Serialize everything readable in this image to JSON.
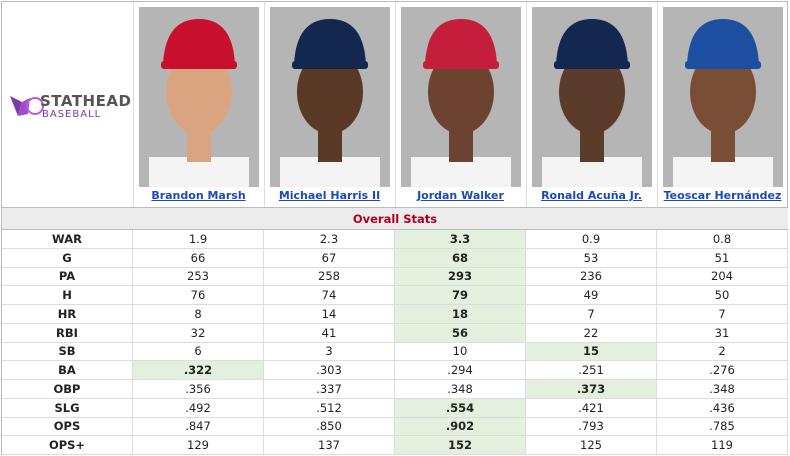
{
  "logo": {
    "brand": "STATHEAD",
    "sub": "BASEBALL"
  },
  "players": [
    "Brandon Marsh",
    "Michael Harris II",
    "Jordan Walker",
    "Ronald Acuña Jr.",
    "Teoscar Hernández"
  ],
  "section_title": "Overall Stats",
  "rows": [
    {
      "label": "WAR",
      "values": [
        "1.9",
        "2.3",
        "3.3",
        "0.9",
        "0.8"
      ],
      "highlight": 2
    },
    {
      "label": "G",
      "values": [
        "66",
        "67",
        "68",
        "53",
        "51"
      ],
      "highlight": 2
    },
    {
      "label": "PA",
      "values": [
        "253",
        "258",
        "293",
        "236",
        "204"
      ],
      "highlight": 2
    },
    {
      "label": "H",
      "values": [
        "76",
        "74",
        "79",
        "49",
        "50"
      ],
      "highlight": 2
    },
    {
      "label": "HR",
      "values": [
        "8",
        "14",
        "18",
        "7",
        "7"
      ],
      "highlight": 2
    },
    {
      "label": "RBI",
      "values": [
        "32",
        "41",
        "56",
        "22",
        "31"
      ],
      "highlight": 2
    },
    {
      "label": "SB",
      "values": [
        "6",
        "3",
        "10",
        "15",
        "2"
      ],
      "highlight": 3
    },
    {
      "label": "BA",
      "values": [
        ".322",
        ".303",
        ".294",
        ".251",
        ".276"
      ],
      "highlight": 0
    },
    {
      "label": "OBP",
      "values": [
        ".356",
        ".337",
        ".348",
        ".373",
        ".348"
      ],
      "highlight": 3
    },
    {
      "label": "SLG",
      "values": [
        ".492",
        ".512",
        ".554",
        ".421",
        ".436"
      ],
      "highlight": 2
    },
    {
      "label": "OPS",
      "values": [
        ".847",
        ".850",
        ".902",
        ".793",
        ".785"
      ],
      "highlight": 2
    },
    {
      "label": "OPS+",
      "values": [
        "129",
        "137",
        "152",
        "125",
        "119"
      ],
      "highlight": 2
    }
  ]
}
